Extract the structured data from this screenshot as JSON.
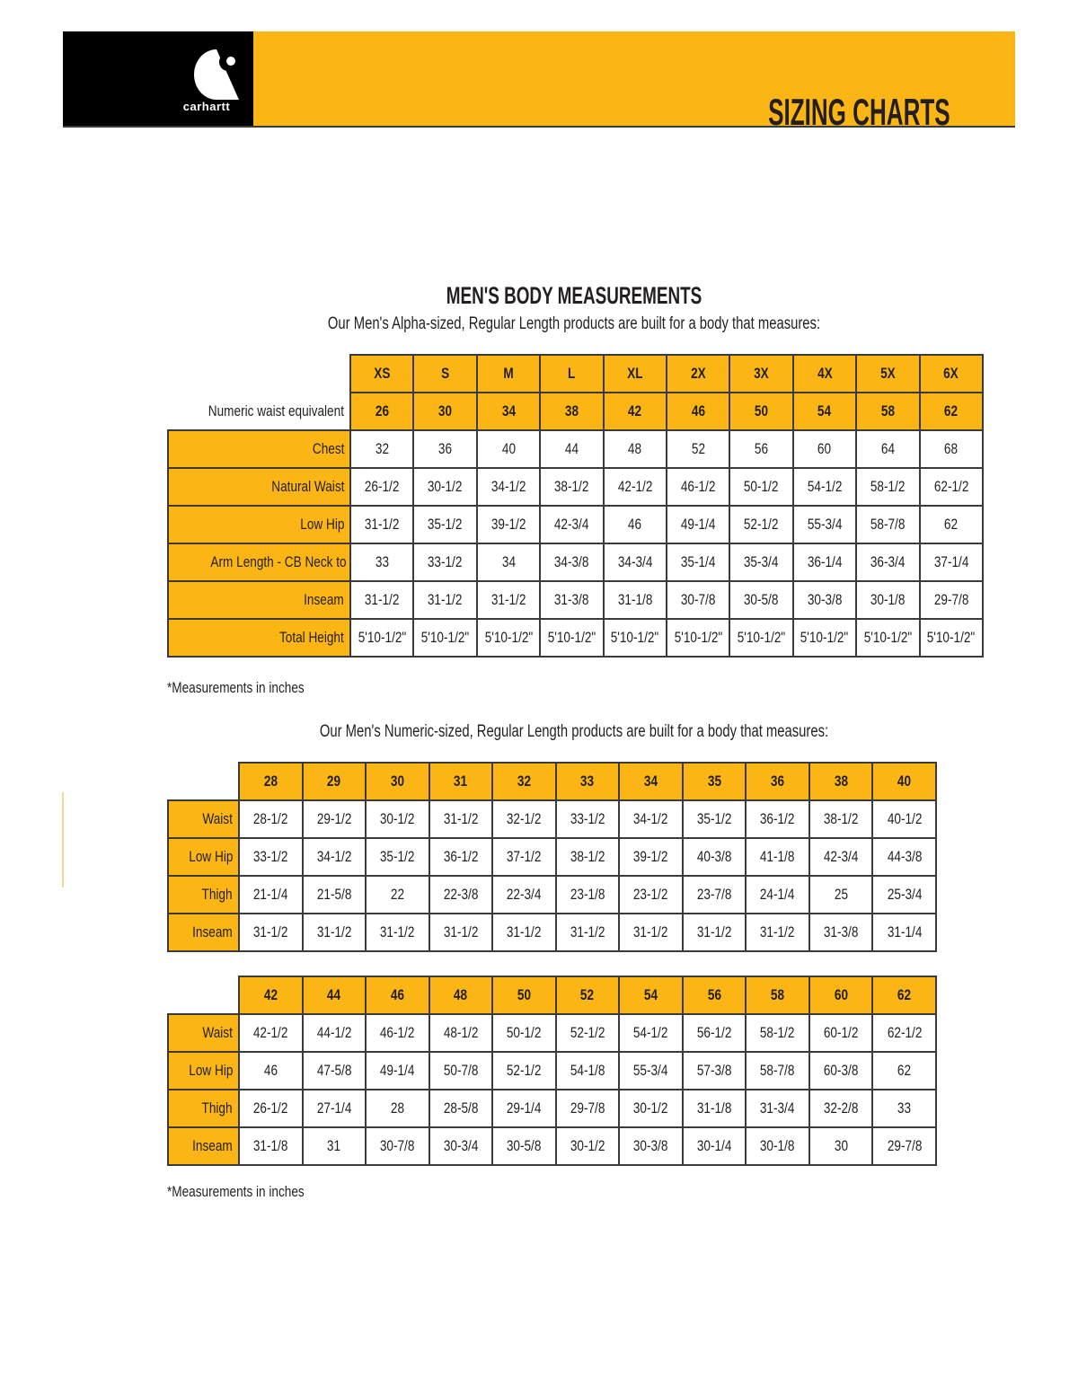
{
  "brand": {
    "logo_text": "carhartt",
    "title": "SIZING CHARTS",
    "colors": {
      "accent": "#fbb616",
      "black": "#000000"
    }
  },
  "alpha": {
    "title": "MEN'S BODY MEASUREMENTS",
    "subtitle": "Our Men's Alpha-sized, Regular Length products are built for a body that measures:",
    "sizes": [
      "XS",
      "S",
      "M",
      "L",
      "XL",
      "2X",
      "3X",
      "4X",
      "5X",
      "6X"
    ],
    "waist_label": "Numeric waist equivalent",
    "waist_equivalent": [
      "26",
      "30",
      "34",
      "38",
      "42",
      "46",
      "50",
      "54",
      "58",
      "62"
    ],
    "rows": [
      {
        "label": "Chest",
        "values": [
          "32",
          "36",
          "40",
          "44",
          "48",
          "52",
          "56",
          "60",
          "64",
          "68"
        ]
      },
      {
        "label": "Natural Waist",
        "values": [
          "26-1/2",
          "30-1/2",
          "34-1/2",
          "38-1/2",
          "42-1/2",
          "46-1/2",
          "50-1/2",
          "54-1/2",
          "58-1/2",
          "62-1/2"
        ]
      },
      {
        "label": "Low Hip",
        "values": [
          "31-1/2",
          "35-1/2",
          "39-1/2",
          "42-3/4",
          "46",
          "49-1/4",
          "52-1/2",
          "55-3/4",
          "58-7/8",
          "62"
        ]
      },
      {
        "label": "Arm Length - CB Neck to Wrist",
        "values": [
          "33",
          "33-1/2",
          "34",
          "34-3/8",
          "34-3/4",
          "35-1/4",
          "35-3/4",
          "36-1/4",
          "36-3/4",
          "37-1/4"
        ]
      },
      {
        "label": "Inseam",
        "values": [
          "31-1/2",
          "31-1/2",
          "31-1/2",
          "31-3/8",
          "31-1/8",
          "30-7/8",
          "30-5/8",
          "30-3/8",
          "30-1/8",
          "29-7/8"
        ]
      },
      {
        "label": "Total Height",
        "values": [
          "5'10-1/2\"",
          "5'10-1/2\"",
          "5'10-1/2\"",
          "5'10-1/2\"",
          "5'10-1/2\"",
          "5'10-1/2\"",
          "5'10-1/2\"",
          "5'10-1/2\"",
          "5'10-1/2\"",
          "5'10-1/2\""
        ]
      }
    ],
    "note": "*Measurements in inches"
  },
  "numeric": {
    "subtitle": "Our Men's Numeric-sized, Regular Length products are built for a body that measures:",
    "tables": [
      {
        "sizes": [
          "28",
          "29",
          "30",
          "31",
          "32",
          "33",
          "34",
          "35",
          "36",
          "38",
          "40"
        ],
        "rows": [
          {
            "label": "Waist",
            "values": [
              "28-1/2",
              "29-1/2",
              "30-1/2",
              "31-1/2",
              "32-1/2",
              "33-1/2",
              "34-1/2",
              "35-1/2",
              "36-1/2",
              "38-1/2",
              "40-1/2"
            ]
          },
          {
            "label": "Low Hip",
            "values": [
              "33-1/2",
              "34-1/2",
              "35-1/2",
              "36-1/2",
              "37-1/2",
              "38-1/2",
              "39-1/2",
              "40-3/8",
              "41-1/8",
              "42-3/4",
              "44-3/8"
            ]
          },
          {
            "label": "Thigh",
            "values": [
              "21-1/4",
              "21-5/8",
              "22",
              "22-3/8",
              "22-3/4",
              "23-1/8",
              "23-1/2",
              "23-7/8",
              "24-1/4",
              "25",
              "25-3/4"
            ]
          },
          {
            "label": "Inseam",
            "values": [
              "31-1/2",
              "31-1/2",
              "31-1/2",
              "31-1/2",
              "31-1/2",
              "31-1/2",
              "31-1/2",
              "31-1/2",
              "31-1/2",
              "31-3/8",
              "31-1/4"
            ]
          }
        ]
      },
      {
        "sizes": [
          "42",
          "44",
          "46",
          "48",
          "50",
          "52",
          "54",
          "56",
          "58",
          "60",
          "62"
        ],
        "rows": [
          {
            "label": "Waist",
            "values": [
              "42-1/2",
              "44-1/2",
              "46-1/2",
              "48-1/2",
              "50-1/2",
              "52-1/2",
              "54-1/2",
              "56-1/2",
              "58-1/2",
              "60-1/2",
              "62-1/2"
            ]
          },
          {
            "label": "Low Hip",
            "values": [
              "46",
              "47-5/8",
              "49-1/4",
              "50-7/8",
              "52-1/2",
              "54-1/8",
              "55-3/4",
              "57-3/8",
              "58-7/8",
              "60-3/8",
              "62"
            ]
          },
          {
            "label": "Thigh",
            "values": [
              "26-1/2",
              "27-1/4",
              "28",
              "28-5/8",
              "29-1/4",
              "29-7/8",
              "30-1/2",
              "31-1/8",
              "31-3/4",
              "32-2/8",
              "33"
            ]
          },
          {
            "label": "Inseam",
            "values": [
              "31-1/8",
              "31",
              "30-7/8",
              "30-3/4",
              "30-5/8",
              "30-1/2",
              "30-3/8",
              "30-1/4",
              "30-1/8",
              "30",
              "29-7/8"
            ]
          }
        ]
      }
    ],
    "note": "*Measurements in inches"
  }
}
